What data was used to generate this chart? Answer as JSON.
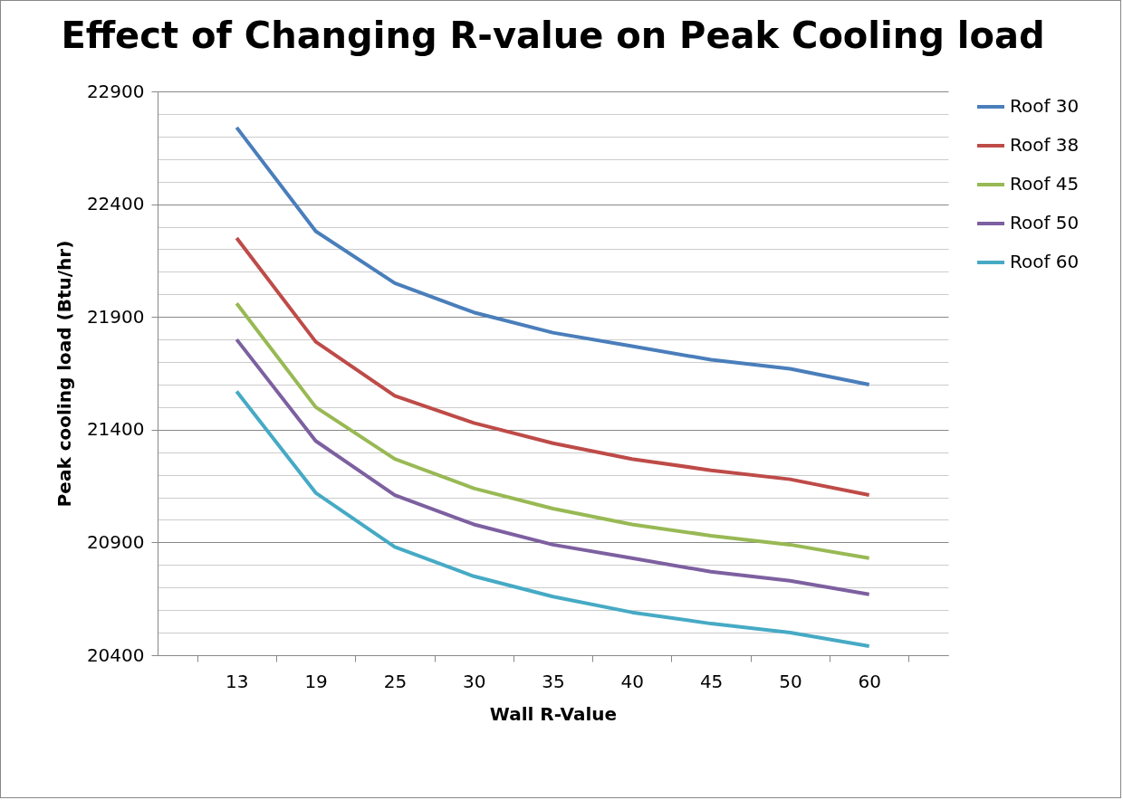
{
  "chart_data": {
    "type": "line",
    "title": "Effect of Changing R-value on Peak Cooling load",
    "xlabel": "Wall R-Value",
    "ylabel": "Peak cooling load (Btu/hr)",
    "categories": [
      "13",
      "19",
      "25",
      "30",
      "35",
      "40",
      "45",
      "50",
      "60"
    ],
    "series": [
      {
        "name": "Roof 30",
        "color": "#4a7ebb",
        "values": [
          22740,
          22280,
          22050,
          21920,
          21830,
          21770,
          21710,
          21670,
          21600
        ]
      },
      {
        "name": "Roof 38",
        "color": "#be4b48",
        "values": [
          22250,
          21790,
          21550,
          21430,
          21340,
          21270,
          21220,
          21180,
          21110
        ]
      },
      {
        "name": "Roof 45",
        "color": "#98b954",
        "values": [
          21960,
          21500,
          21270,
          21140,
          21050,
          20980,
          20930,
          20890,
          20830
        ]
      },
      {
        "name": "Roof 50",
        "color": "#7d60a0",
        "values": [
          21800,
          21350,
          21110,
          20980,
          20890,
          20830,
          20770,
          20730,
          20670
        ]
      },
      {
        "name": "Roof 60",
        "color": "#46aac5",
        "values": [
          21570,
          21120,
          20880,
          20750,
          20660,
          20590,
          20540,
          20500,
          20440
        ]
      }
    ],
    "ylim": [
      20400,
      22900
    ],
    "yticks": [
      20400,
      {
        "value": 20500,
        "label": null
      },
      {
        "value": 20600,
        "label": null
      },
      {
        "value": 20700,
        "label": null
      },
      {
        "value": 20800,
        "label": null
      },
      20900,
      {
        "value": 21000,
        "label": null
      },
      {
        "value": 21100,
        "label": null
      },
      {
        "value": 21200,
        "label": null
      },
      {
        "value": 21300,
        "label": null
      },
      21400,
      {
        "value": 21500,
        "label": null
      },
      {
        "value": 21600,
        "label": null
      },
      {
        "value": 21700,
        "label": null
      },
      {
        "value": 21800,
        "label": null
      },
      21900,
      {
        "value": 22000,
        "label": null
      },
      {
        "value": 22100,
        "label": null
      },
      {
        "value": 22200,
        "label": null
      },
      {
        "value": 22300,
        "label": null
      },
      22400,
      {
        "value": 22500,
        "label": null
      },
      {
        "value": 22600,
        "label": null
      },
      {
        "value": 22700,
        "label": null
      },
      {
        "value": 22800,
        "label": null
      },
      22900
    ],
    "grid": "y",
    "legend": "right",
    "marker": "none",
    "line_style": "solid"
  }
}
